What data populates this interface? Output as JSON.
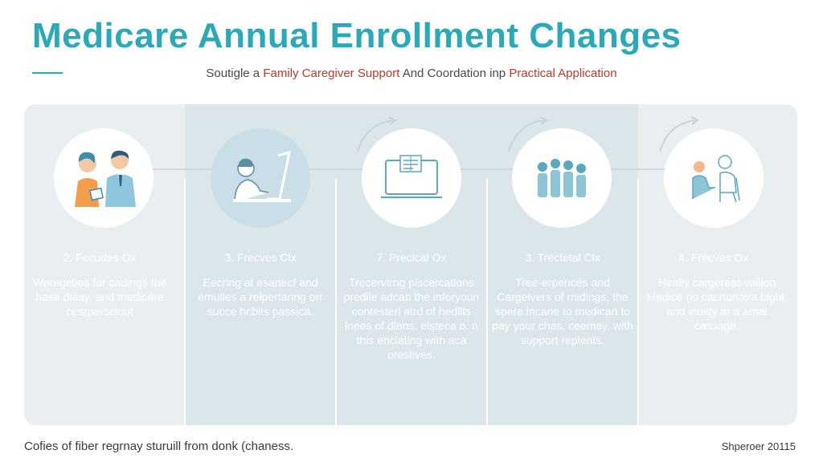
{
  "title": "Medicare Annual Enrollment Changes",
  "subtitle": {
    "prefix": "Soutigle a ",
    "highlight1": "Family Caregiver Support",
    "middle": " And Coordation inp ",
    "highlight2": "Practical Application"
  },
  "colors": {
    "accent": "#2aa9b9",
    "highlight": "#c0392b",
    "panel": "#e9eef1"
  },
  "steps": [
    {
      "title": "2. Fecudes Ox",
      "desc": "Weregeties for cadings the hase diaay, and medicare cesrpersclout",
      "icon": "caregiver-pair-icon"
    },
    {
      "title": "3. Frecves Clx",
      "desc": "Eecring at esanecf and emulles a relpertaring orr succe hcbits passica.",
      "icon": "laptop-user-icon"
    },
    {
      "title": "7. Precical Ox",
      "desc": "Trecervirng piscercations predile adcab the inforyoun contesterl atrd of hedllts lnees of dlens. elsteca o. n this enclating with aca orestives.",
      "icon": "computer-document-icon"
    },
    {
      "title": "3. Trecfetal Clx",
      "desc": "Tree-erpences and Cargeivers of rnidings, the spere incane to medican to pay your chas, ceemay, with support replents.",
      "icon": "people-group-icon"
    },
    {
      "title": "4. Frecves Ox",
      "desc": "Heally cargeress wiiljon Medice no cacrtonaira bighl, and inuilty ar a amal cassage.",
      "icon": "consultation-icon"
    }
  ],
  "footer": {
    "left": "Cofies of fiber regrnay sturuill from donk (chaness.",
    "right": "Shperoer 20115"
  }
}
